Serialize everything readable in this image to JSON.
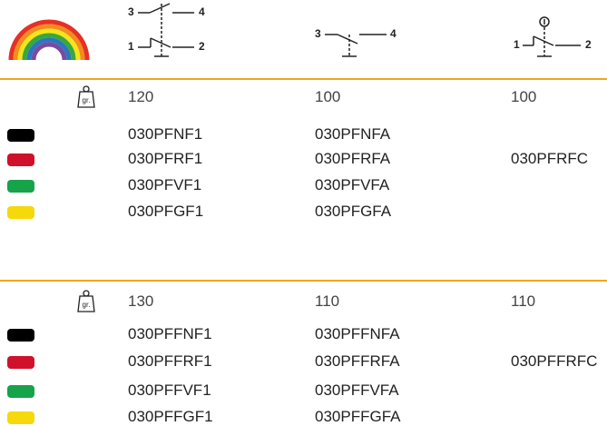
{
  "diagrams": [
    {
      "labels": [
        "3",
        "4",
        "1",
        "2"
      ]
    },
    {
      "labels": [
        "3",
        "4"
      ]
    },
    {
      "labels": [
        "1",
        "2"
      ]
    }
  ],
  "weight_unit": "gr.",
  "sections": [
    {
      "weights": [
        "120",
        "100",
        "100"
      ],
      "rows": [
        {
          "color": "#000000",
          "codes": [
            "030PFNF1",
            "030PFNFA"
          ]
        },
        {
          "color": "#d0112b",
          "codes": [
            "030PFRF1",
            "030PFRFA",
            "030PFRFC"
          ]
        },
        {
          "color": "#16a34a",
          "codes": [
            "030PFVF1",
            "030PFVFA"
          ]
        },
        {
          "color": "#f5d90a",
          "codes": [
            "030PFGF1",
            "030PFGFA"
          ]
        }
      ]
    },
    {
      "weights": [
        "130",
        "110",
        "110"
      ],
      "rows": [
        {
          "color": "#000000",
          "codes": [
            "030PFFNF1",
            "030PFFNFA"
          ]
        },
        {
          "color": "#d0112b",
          "codes": [
            "030PFFRF1",
            "030PFFRFA",
            "030PFFRFC"
          ]
        },
        {
          "color": "#16a34a",
          "codes": [
            "030PFFVF1",
            "030PFFVFA"
          ]
        },
        {
          "color": "#f5d90a",
          "codes": [
            "030PFFGF1",
            "030PFFGFA"
          ]
        }
      ]
    }
  ]
}
